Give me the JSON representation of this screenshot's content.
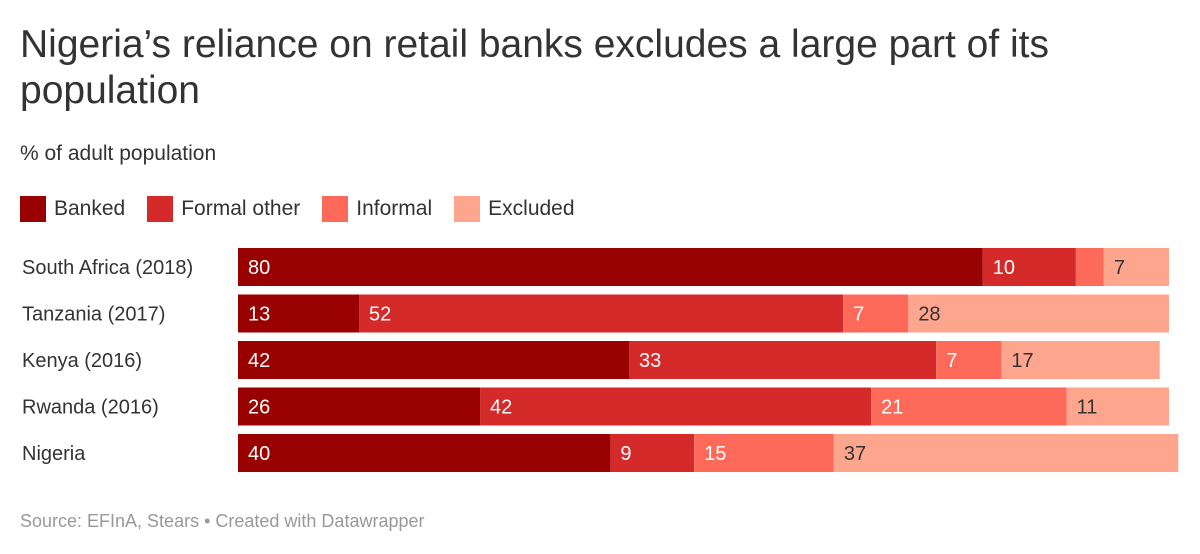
{
  "title": "Nigeria’s reliance on retail banks excludes a large part of its population",
  "subtitle": "% of adult population",
  "footer": "Source: EFInA, Stears • Created with Datawrapper",
  "legend": [
    {
      "label": "Banked",
      "color": "#990000"
    },
    {
      "label": "Formal other",
      "color": "#d42a2a"
    },
    {
      "label": "Informal",
      "color": "#fd6a59"
    },
    {
      "label": "Excluded",
      "color": "#fea58e"
    }
  ],
  "chart_data": {
    "type": "bar",
    "orientation": "horizontal",
    "stacked": true,
    "categories": [
      "South Africa (2018)",
      "Tanzania (2017)",
      "Kenya (2016)",
      "Rwanda (2016)",
      "Nigeria"
    ],
    "series": [
      {
        "name": "Banked",
        "color": "#990000",
        "values": [
          80,
          13,
          42,
          26,
          40
        ]
      },
      {
        "name": "Formal other",
        "color": "#d42a2a",
        "values": [
          10,
          52,
          33,
          42,
          9
        ]
      },
      {
        "name": "Informal",
        "color": "#fd6a59",
        "values": [
          3,
          7,
          7,
          21,
          15
        ]
      },
      {
        "name": "Excluded",
        "color": "#fea58e",
        "values": [
          7,
          28,
          17,
          11,
          37
        ]
      }
    ],
    "data_labels": [
      [
        "80",
        "10",
        "",
        "7"
      ],
      [
        "13",
        "52",
        "7",
        "28"
      ],
      [
        "42",
        "33",
        "7",
        "17"
      ],
      [
        "26",
        "42",
        "21",
        "11"
      ],
      [
        "40",
        "9",
        "15",
        "37"
      ]
    ],
    "title": "Nigeria’s reliance on retail banks excludes a large part of its population",
    "xlabel": "",
    "ylabel": "",
    "xlim": [
      0,
      100
    ],
    "grid": false,
    "legend_position": "top-left"
  }
}
